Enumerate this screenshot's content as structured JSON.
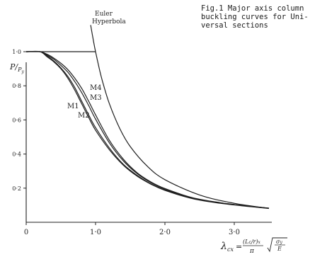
{
  "caption": {
    "line1": "Fig.1  Major axis column",
    "line2": "buckling curves for Uni-",
    "line3": "versal sections"
  },
  "chart_data": {
    "type": "line",
    "title": "Fig.1  Major axis column buckling curves for Universal sections",
    "xlabel": "λcx = (Lc/r)x/π · √(σy/E)",
    "ylabel": "P/Py",
    "xlim": [
      0,
      3.6
    ],
    "ylim": [
      0,
      1.15
    ],
    "x_ticks": [
      0,
      1,
      2,
      3
    ],
    "x_tick_labels": [
      "0",
      "1·0",
      "2·0",
      "3·0"
    ],
    "y_ticks": [
      0.2,
      0.4,
      0.6,
      0.8,
      1.0
    ],
    "y_tick_labels": [
      "0·2",
      "0·4",
      "0·6",
      "0·8",
      "1·0"
    ],
    "grid": false,
    "annotations": [
      {
        "text": "Euler",
        "line2": "Hyperbola",
        "refers_to": "Euler Hyperbola"
      },
      {
        "text": "M4"
      },
      {
        "text": "M3"
      },
      {
        "text": "M1"
      },
      {
        "text": "M2"
      }
    ],
    "series": [
      {
        "name": "Euler Hyperbola",
        "x": [
          0.93,
          0.96,
          1.0,
          1.05,
          1.1,
          1.2,
          1.35,
          1.5,
          1.75,
          2.0,
          2.5,
          3.0,
          3.5
        ],
        "y": [
          1.156,
          1.085,
          1.0,
          0.907,
          0.826,
          0.694,
          0.549,
          0.444,
          0.327,
          0.25,
          0.16,
          0.111,
          0.082
        ]
      },
      {
        "name": "Plateau",
        "x": [
          0,
          1.0
        ],
        "y": [
          1.0,
          1.0
        ]
      },
      {
        "name": "M1",
        "x": [
          0,
          0.2,
          0.3,
          0.4,
          0.5,
          0.6,
          0.7,
          0.8,
          0.9,
          1.0,
          1.2,
          1.4,
          1.6,
          1.8,
          2.0,
          2.4,
          2.8,
          3.2,
          3.5
        ],
        "y": [
          1.0,
          1.0,
          0.975,
          0.945,
          0.905,
          0.855,
          0.79,
          0.71,
          0.63,
          0.555,
          0.435,
          0.34,
          0.275,
          0.225,
          0.19,
          0.14,
          0.113,
          0.094,
          0.082
        ]
      },
      {
        "name": "M2",
        "x": [
          0,
          0.2,
          0.3,
          0.4,
          0.5,
          0.6,
          0.7,
          0.8,
          0.9,
          1.0,
          1.2,
          1.4,
          1.6,
          1.8,
          2.0,
          2.4,
          2.8,
          3.2,
          3.5
        ],
        "y": [
          1.0,
          1.0,
          0.97,
          0.94,
          0.9,
          0.845,
          0.775,
          0.695,
          0.615,
          0.54,
          0.425,
          0.335,
          0.27,
          0.223,
          0.187,
          0.138,
          0.111,
          0.093,
          0.081
        ]
      },
      {
        "name": "M3",
        "x": [
          0,
          0.2,
          0.3,
          0.4,
          0.5,
          0.6,
          0.7,
          0.8,
          0.9,
          1.0,
          1.2,
          1.4,
          1.6,
          1.8,
          2.0,
          2.4,
          2.8,
          3.2,
          3.5
        ],
        "y": [
          1.0,
          1.0,
          0.98,
          0.955,
          0.92,
          0.88,
          0.825,
          0.76,
          0.685,
          0.605,
          0.465,
          0.36,
          0.285,
          0.232,
          0.195,
          0.142,
          0.114,
          0.095,
          0.082
        ]
      },
      {
        "name": "M4",
        "x": [
          0,
          0.2,
          0.3,
          0.4,
          0.5,
          0.6,
          0.7,
          0.8,
          0.9,
          1.0,
          1.2,
          1.4,
          1.6,
          1.8,
          2.0,
          2.4,
          2.8,
          3.2,
          3.5
        ],
        "y": [
          1.0,
          1.0,
          0.985,
          0.962,
          0.932,
          0.895,
          0.845,
          0.785,
          0.71,
          0.63,
          0.48,
          0.37,
          0.29,
          0.236,
          0.198,
          0.144,
          0.115,
          0.095,
          0.083
        ]
      }
    ]
  }
}
